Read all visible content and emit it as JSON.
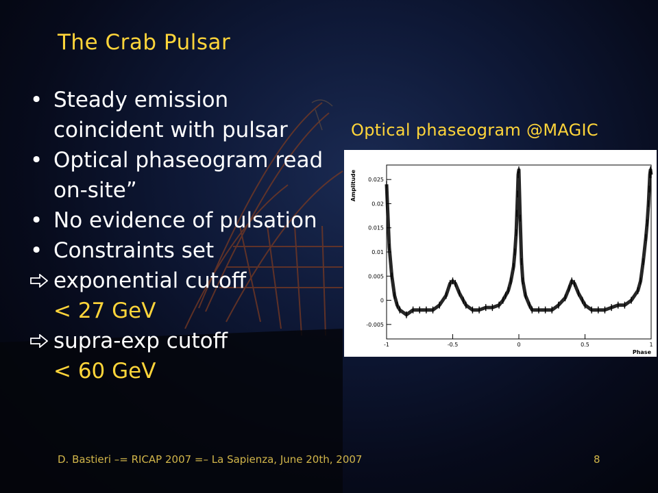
{
  "slide": {
    "title": "The Crab Pulsar",
    "bullets": [
      {
        "text": "Steady emission coincident with pulsar"
      },
      {
        "text": "Optical phaseogram read on-site”"
      },
      {
        "text": "No evidence of pulsation"
      },
      {
        "text": "Constraints set"
      }
    ],
    "sub_items": [
      {
        "line1": "exponential cutoff",
        "line2": "< 27 GeV"
      },
      {
        "line1": "supra-exp cutoff",
        "line2": "< 60 GeV"
      }
    ],
    "plot_caption": "Optical phaseogram @MAGIC",
    "footer": "D. Bastieri –= RICAP 2007 =– La Sapienza, June 20th, 2007",
    "page_number": "8",
    "colors": {
      "accent": "#ffd53a",
      "text": "#ffffff",
      "footer": "#d2b64a"
    }
  },
  "chart_data": {
    "type": "line",
    "title": "",
    "xlabel": "Phase",
    "ylabel": "Amplitude",
    "xlim": [
      -1,
      1
    ],
    "ylim": [
      -0.008,
      0.028
    ],
    "x_ticks": [
      "-1",
      "-0.5",
      "0",
      "0.5",
      "1"
    ],
    "y_ticks": [
      "-0.005",
      "0",
      "0.005",
      "0.01",
      "0.015",
      "0.02",
      "0.025"
    ],
    "grid": false,
    "legend": "none",
    "series": [
      {
        "x": [
          -1.0,
          -0.98,
          -0.96,
          -0.94,
          -0.92,
          -0.9,
          -0.85,
          -0.8,
          -0.75,
          -0.7,
          -0.65,
          -0.6,
          -0.55,
          -0.52,
          -0.5,
          -0.48,
          -0.45,
          -0.42,
          -0.4,
          -0.35,
          -0.3,
          -0.25,
          -0.2,
          -0.15,
          -0.12,
          -0.1,
          -0.08,
          -0.06,
          -0.04,
          -0.03,
          -0.02,
          -0.015,
          -0.01,
          -0.005,
          0.0,
          0.01,
          0.02,
          0.03,
          0.05,
          0.08,
          0.1,
          0.15,
          0.2,
          0.25,
          0.3,
          0.35,
          0.38,
          0.4,
          0.42,
          0.45,
          0.48,
          0.5,
          0.55,
          0.6,
          0.65,
          0.7,
          0.75,
          0.8,
          0.85,
          0.9,
          0.92,
          0.94,
          0.96,
          0.97,
          0.98,
          0.985,
          0.99,
          0.995,
          1.0
        ],
        "y": [
          0.024,
          0.011,
          0.005,
          0.001,
          -0.001,
          -0.002,
          -0.003,
          -0.002,
          -0.002,
          -0.002,
          -0.002,
          -0.001,
          0.001,
          0.0035,
          0.004,
          0.0035,
          0.0015,
          0.0,
          -0.001,
          -0.002,
          -0.002,
          -0.0015,
          -0.0015,
          -0.001,
          0.0,
          0.001,
          0.002,
          0.004,
          0.007,
          0.01,
          0.014,
          0.018,
          0.022,
          0.026,
          0.027,
          0.017,
          0.008,
          0.004,
          0.001,
          -0.001,
          -0.002,
          -0.002,
          -0.002,
          -0.002,
          -0.001,
          0.0005,
          0.0025,
          0.004,
          0.0035,
          0.0015,
          0.0,
          -0.001,
          -0.002,
          -0.002,
          -0.002,
          -0.0015,
          -0.001,
          -0.001,
          0.0,
          0.002,
          0.004,
          0.008,
          0.013,
          0.016,
          0.02,
          0.023,
          0.026,
          0.027,
          0.026
        ]
      }
    ]
  }
}
